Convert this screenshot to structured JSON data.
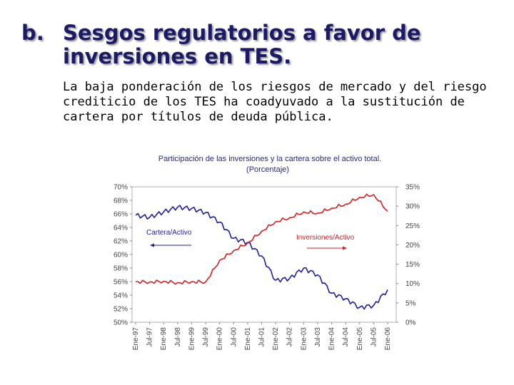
{
  "slide": {
    "letter": "b.",
    "title": "Sesgos regulatorios a favor de inversiones en TES.",
    "subtitle": "La baja ponderación de los riesgos de mercado y del riesgo crediticio de los TES ha coadyuvado a la sustitución de cartera por títulos de deuda pública."
  },
  "colors": {
    "title": "#1a1a66",
    "cartera": "#1f1fa0",
    "inversiones": "#d42020"
  },
  "chart_data": {
    "type": "line",
    "title": "Participación de las inversiones y la cartera sobre el activo total.",
    "subtitle": "(Porcentaje)",
    "x": [
      "Ene-97",
      "Jul-97",
      "Ene-98",
      "Jul-98",
      "Ene-99",
      "Jul-99",
      "Ene-00",
      "Jul-00",
      "Ene-01",
      "Jul-01",
      "Ene-02",
      "Jul-02",
      "Ene-03",
      "Jul-03",
      "Ene-04",
      "Jul-04",
      "Ene-05",
      "Jul-05",
      "Ene-06"
    ],
    "y_left": {
      "ticks": [
        "70%",
        "68%",
        "66%",
        "64%",
        "62%",
        "60%",
        "58%",
        "56%",
        "54%",
        "52%",
        "50%"
      ],
      "ylim": [
        50,
        70
      ]
    },
    "y_right": {
      "ticks": [
        "35%",
        "30%",
        "25%",
        "20%",
        "15%",
        "10%",
        "5%",
        "0%"
      ],
      "ylim": [
        0,
        35
      ]
    },
    "series": [
      {
        "name": "Cartera/Activo",
        "axis": "left",
        "values": [
          65.8,
          65.5,
          66.3,
          67.0,
          66.8,
          66.2,
          64.8,
          62.4,
          61.8,
          59.8,
          56.2,
          56.5,
          58.0,
          57.0,
          54.3,
          53.5,
          52.2,
          52.5,
          54.8
        ]
      },
      {
        "name": "Inversiones/Activo",
        "axis": "right",
        "values": [
          10.5,
          10.4,
          10.6,
          10.2,
          10.5,
          10.4,
          16.0,
          18.5,
          20.5,
          23.5,
          26.0,
          27.0,
          28.5,
          28.2,
          29.5,
          30.5,
          32.3,
          33.0,
          28.7
        ]
      }
    ],
    "annotations": [
      {
        "text": "Cartera/Activo",
        "series": "Cartera/Activo"
      },
      {
        "text": "Inversiones/Activo",
        "series": "Inversiones/Activo"
      }
    ]
  }
}
